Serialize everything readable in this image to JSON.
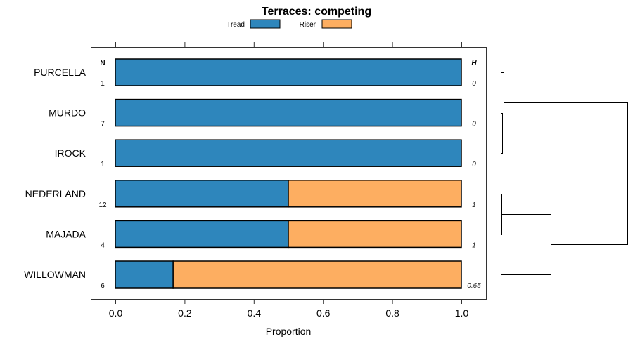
{
  "chart_data": {
    "type": "bar",
    "stacked": true,
    "orientation": "horizontal",
    "title": "Terraces: competing",
    "xlabel": "Proportion",
    "ylabel": "",
    "xlim": [
      0,
      1
    ],
    "xticks": [
      "0.0",
      "0.2",
      "0.4",
      "0.6",
      "0.8",
      "1.0"
    ],
    "xtick_values": [
      0,
      0.2,
      0.4,
      0.6,
      0.8,
      1.0
    ],
    "legend_placement": "top",
    "n_header": "N",
    "h_header": "H",
    "categories": [
      "PURCELLA",
      "MURDO",
      "IROCK",
      "NEDERLAND",
      "MAJADA",
      "WILLOWMAN"
    ],
    "n": [
      "1",
      "7",
      "1",
      "12",
      "4",
      "6"
    ],
    "h": [
      "0",
      "0",
      "0",
      "1",
      "1",
      "0.65"
    ],
    "series": [
      {
        "name": "Tread",
        "color": "#2E86BC",
        "values": [
          1.0,
          1.0,
          1.0,
          0.5,
          0.5,
          0.167
        ]
      },
      {
        "name": "Riser",
        "color": "#FDAE61",
        "values": [
          0.0,
          0.0,
          0.0,
          0.5,
          0.5,
          0.833
        ]
      }
    ]
  }
}
